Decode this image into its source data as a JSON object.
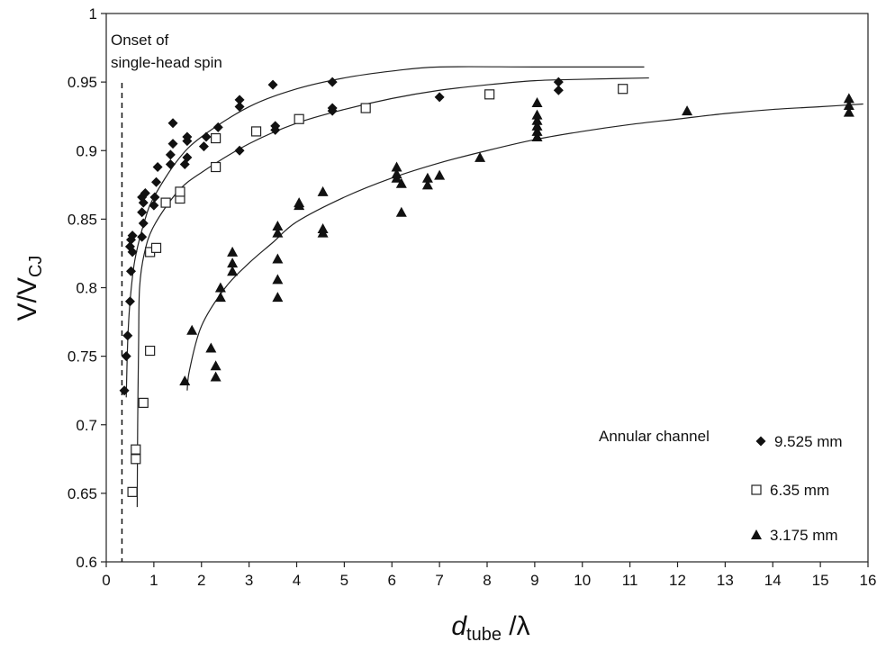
{
  "chart_data": {
    "type": "scatter",
    "xlabel": "d",
    "xlabel_sub": "tube",
    "xlabel_suffix": " /λ",
    "ylabel": "V/V",
    "ylabel_sub": "CJ",
    "xlim": [
      0,
      16
    ],
    "ylim": [
      0.6,
      1.0
    ],
    "x_ticks": [
      "0",
      "1",
      "2",
      "3",
      "4",
      "5",
      "6",
      "7",
      "8",
      "9",
      "10",
      "11",
      "12",
      "13",
      "14",
      "15",
      "16"
    ],
    "y_ticks": [
      "0.6",
      "0.65",
      "0.7",
      "0.75",
      "0.8",
      "0.85",
      "0.9",
      "0.95",
      "1"
    ],
    "grid": false,
    "legend_position": "bottom-right",
    "legend_title": "Annular channel",
    "annotation": {
      "line1": "Onset of",
      "line2": "single-head spin",
      "x": 0.33
    },
    "series": [
      {
        "name": "9.525 mm",
        "marker": "diamond",
        "color": "#111111",
        "points": [
          [
            0.38,
            0.725
          ],
          [
            0.42,
            0.75
          ],
          [
            0.45,
            0.765
          ],
          [
            0.5,
            0.79
          ],
          [
            0.52,
            0.812
          ],
          [
            0.55,
            0.826
          ],
          [
            0.5,
            0.83
          ],
          [
            0.52,
            0.835
          ],
          [
            0.55,
            0.838
          ],
          [
            0.75,
            0.837
          ],
          [
            0.78,
            0.847
          ],
          [
            0.75,
            0.855
          ],
          [
            0.78,
            0.862
          ],
          [
            0.75,
            0.866
          ],
          [
            0.82,
            0.869
          ],
          [
            1.0,
            0.86
          ],
          [
            1.02,
            0.866
          ],
          [
            1.05,
            0.877
          ],
          [
            1.08,
            0.888
          ],
          [
            1.35,
            0.89
          ],
          [
            1.35,
            0.897
          ],
          [
            1.4,
            0.905
          ],
          [
            1.4,
            0.92
          ],
          [
            1.65,
            0.89
          ],
          [
            1.7,
            0.895
          ],
          [
            1.7,
            0.907
          ],
          [
            1.7,
            0.91
          ],
          [
            2.05,
            0.903
          ],
          [
            2.1,
            0.91
          ],
          [
            2.35,
            0.917
          ],
          [
            2.8,
            0.9
          ],
          [
            2.8,
            0.932
          ],
          [
            2.8,
            0.937
          ],
          [
            3.55,
            0.915
          ],
          [
            3.55,
            0.918
          ],
          [
            3.5,
            0.948
          ],
          [
            4.75,
            0.929
          ],
          [
            4.75,
            0.931
          ],
          [
            4.75,
            0.95
          ],
          [
            7.0,
            0.939
          ],
          [
            9.5,
            0.944
          ],
          [
            9.5,
            0.95
          ]
        ]
      },
      {
        "name": "6.35 mm",
        "marker": "square-open",
        "color": "#111111",
        "points": [
          [
            0.55,
            0.651
          ],
          [
            0.62,
            0.675
          ],
          [
            0.62,
            0.682
          ],
          [
            0.78,
            0.716
          ],
          [
            0.92,
            0.754
          ],
          [
            0.92,
            0.826
          ],
          [
            1.05,
            0.829
          ],
          [
            1.25,
            0.862
          ],
          [
            1.55,
            0.865
          ],
          [
            1.55,
            0.87
          ],
          [
            2.3,
            0.888
          ],
          [
            2.3,
            0.909
          ],
          [
            3.15,
            0.914
          ],
          [
            4.05,
            0.923
          ],
          [
            5.45,
            0.931
          ],
          [
            8.05,
            0.941
          ],
          [
            10.85,
            0.945
          ]
        ]
      },
      {
        "name": "3.175 mm",
        "marker": "triangle",
        "color": "#111111",
        "points": [
          [
            1.65,
            0.732
          ],
          [
            1.8,
            0.769
          ],
          [
            2.2,
            0.756
          ],
          [
            2.3,
            0.735
          ],
          [
            2.3,
            0.743
          ],
          [
            2.4,
            0.793
          ],
          [
            2.4,
            0.8
          ],
          [
            2.65,
            0.812
          ],
          [
            2.65,
            0.818
          ],
          [
            2.65,
            0.826
          ],
          [
            3.6,
            0.793
          ],
          [
            3.6,
            0.806
          ],
          [
            3.6,
            0.821
          ],
          [
            3.6,
            0.84
          ],
          [
            3.6,
            0.845
          ],
          [
            4.05,
            0.86
          ],
          [
            4.05,
            0.862
          ],
          [
            4.55,
            0.84
          ],
          [
            4.55,
            0.843
          ],
          [
            4.55,
            0.87
          ],
          [
            6.1,
            0.88
          ],
          [
            6.1,
            0.883
          ],
          [
            6.1,
            0.888
          ],
          [
            6.2,
            0.855
          ],
          [
            6.2,
            0.876
          ],
          [
            6.75,
            0.875
          ],
          [
            6.75,
            0.88
          ],
          [
            7.0,
            0.882
          ],
          [
            7.85,
            0.895
          ],
          [
            9.05,
            0.91
          ],
          [
            9.05,
            0.914
          ],
          [
            9.05,
            0.918
          ],
          [
            9.05,
            0.922
          ],
          [
            9.05,
            0.926
          ],
          [
            9.05,
            0.935
          ],
          [
            12.2,
            0.929
          ],
          [
            15.6,
            0.928
          ],
          [
            15.6,
            0.933
          ],
          [
            15.6,
            0.938
          ]
        ]
      }
    ],
    "fit_curves": [
      {
        "name": "9.525 mm",
        "points": [
          [
            0.42,
            0.72
          ],
          [
            0.45,
            0.76
          ],
          [
            0.5,
            0.79
          ],
          [
            0.6,
            0.82
          ],
          [
            0.8,
            0.848
          ],
          [
            1.0,
            0.866
          ],
          [
            1.5,
            0.893
          ],
          [
            2.0,
            0.91
          ],
          [
            3.0,
            0.932
          ],
          [
            4.0,
            0.945
          ],
          [
            5.0,
            0.953
          ],
          [
            6.0,
            0.958
          ],
          [
            7.0,
            0.961
          ],
          [
            9.0,
            0.961
          ],
          [
            11.3,
            0.961
          ]
        ]
      },
      {
        "name": "6.35 mm",
        "points": [
          [
            0.65,
            0.64
          ],
          [
            0.66,
            0.7
          ],
          [
            0.68,
            0.76
          ],
          [
            0.7,
            0.8
          ],
          [
            0.8,
            0.825
          ],
          [
            1.0,
            0.845
          ],
          [
            1.5,
            0.87
          ],
          [
            2.0,
            0.884
          ],
          [
            3.0,
            0.905
          ],
          [
            4.0,
            0.92
          ],
          [
            5.0,
            0.93
          ],
          [
            6.0,
            0.938
          ],
          [
            7.0,
            0.944
          ],
          [
            8.0,
            0.948
          ],
          [
            9.0,
            0.951
          ],
          [
            10.0,
            0.952
          ],
          [
            11.4,
            0.953
          ]
        ]
      },
      {
        "name": "3.175 mm",
        "points": [
          [
            1.7,
            0.725
          ],
          [
            1.75,
            0.74
          ],
          [
            2.0,
            0.772
          ],
          [
            2.5,
            0.8
          ],
          [
            3.0,
            0.818
          ],
          [
            3.5,
            0.833
          ],
          [
            4.0,
            0.848
          ],
          [
            5.0,
            0.866
          ],
          [
            6.0,
            0.88
          ],
          [
            7.0,
            0.891
          ],
          [
            8.0,
            0.9
          ],
          [
            9.0,
            0.908
          ],
          [
            10.0,
            0.914
          ],
          [
            11.0,
            0.919
          ],
          [
            12.0,
            0.923
          ],
          [
            13.0,
            0.927
          ],
          [
            14.0,
            0.93
          ],
          [
            15.0,
            0.932
          ],
          [
            15.9,
            0.934
          ]
        ]
      }
    ]
  }
}
